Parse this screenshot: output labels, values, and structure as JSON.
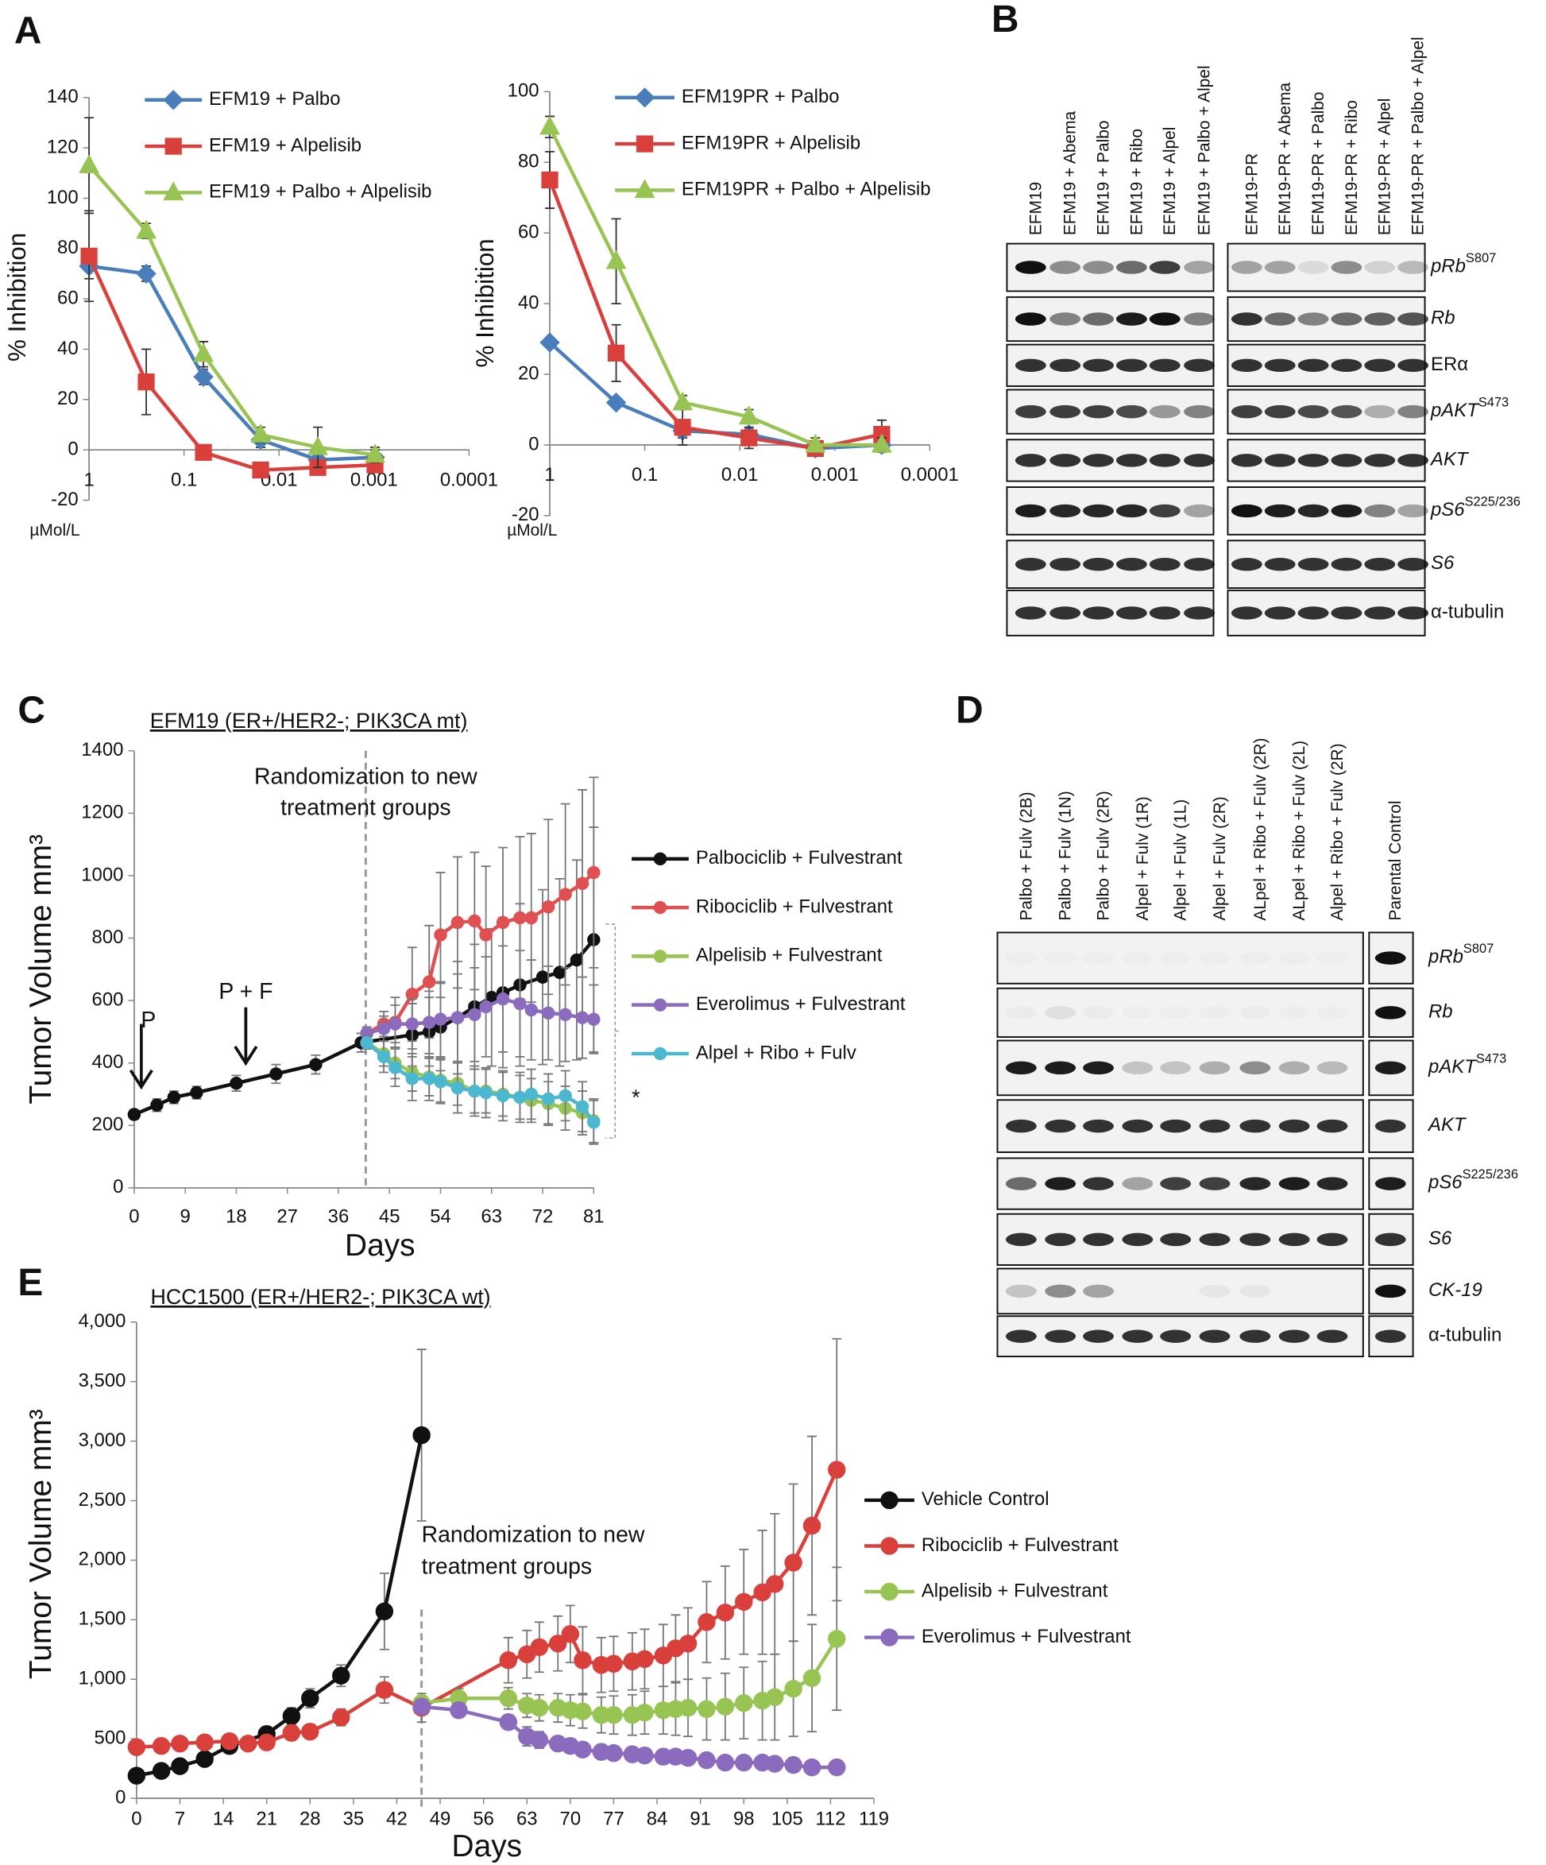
{
  "panel_labels": [
    "A",
    "B",
    "C",
    "D",
    "E"
  ],
  "chart_data": [
    {
      "type": "line",
      "xlog": true,
      "y_label": "% Inhibition",
      "x_unit": "µMol/L",
      "x": [
        1,
        0.25,
        0.0625,
        0.015625,
        0.00390625,
        0.0009765625
      ],
      "xlim": [
        1,
        0.0001
      ],
      "xticks": [
        1,
        0.1,
        0.01,
        0.001,
        0.0001
      ],
      "ylim": [
        -20,
        140
      ],
      "yticks": [
        -20,
        0,
        20,
        40,
        60,
        80,
        100,
        120,
        140
      ],
      "series": [
        {
          "name": "EFM19 + Palbo",
          "color": "#4a7ebb",
          "marker": "diamond",
          "values": [
            73,
            70,
            29,
            4,
            -4,
            -3
          ],
          "errors": [
            5,
            3,
            3,
            3,
            5,
            3
          ]
        },
        {
          "name": "EFM19 + Alpelisib",
          "color": "#d9403b",
          "marker": "square",
          "values": [
            77,
            27,
            -1,
            -8,
            -7,
            -6
          ],
          "errors": [
            18,
            13,
            2,
            2,
            3,
            3
          ]
        },
        {
          "name": "EFM19 + Palbo + Alpelisib",
          "color": "#98c454",
          "marker": "triangle",
          "values": [
            113,
            87,
            38,
            6,
            1,
            -2
          ],
          "errors": [
            19,
            3,
            5,
            3,
            8,
            3
          ]
        }
      ]
    },
    {
      "type": "line",
      "xlog": true,
      "y_label": "% Inhibition",
      "x_unit": "µMol/L",
      "x": [
        1,
        0.2,
        0.04,
        0.008,
        0.0016,
        0.00032
      ],
      "xlim": [
        1,
        0.0001
      ],
      "xticks": [
        1,
        0.1,
        0.01,
        0.001,
        0.0001
      ],
      "ylim": [
        -20,
        100
      ],
      "yticks": [
        -20,
        0,
        20,
        40,
        60,
        80,
        100
      ],
      "series": [
        {
          "name": "EFM19PR + Palbo",
          "color": "#4a7ebb",
          "marker": "diamond",
          "values": [
            29,
            12,
            4,
            3,
            -1,
            0
          ],
          "errors": [
            1,
            1,
            2,
            2,
            2,
            2
          ]
        },
        {
          "name": "EFM19PR + Alpelisib",
          "color": "#d9403b",
          "marker": "square",
          "values": [
            75,
            26,
            5,
            2,
            -1,
            3
          ],
          "errors": [
            8,
            8,
            5,
            3,
            2,
            4
          ]
        },
        {
          "name": "EFM19PR + Palbo + Alpelisib",
          "color": "#98c454",
          "marker": "triangle",
          "values": [
            90,
            52,
            12,
            8,
            0,
            0
          ],
          "errors": [
            3,
            12,
            2,
            2,
            2,
            2
          ]
        }
      ]
    },
    {
      "type": "line",
      "title": "EFM19 (ER+/HER2-; PIK3CA mt)",
      "x_label": "Days",
      "y_label": "Tumor Volume mm³",
      "annotations": [
        "Randomization to new",
        "treatment groups"
      ],
      "dose_labels": [
        "P",
        "P + F"
      ],
      "significance": "*",
      "x": [
        41,
        44,
        46,
        49,
        52,
        54,
        57,
        60,
        62,
        65,
        68,
        70,
        73,
        76,
        79,
        81
      ],
      "xlim": [
        0,
        81
      ],
      "xticks": [
        0,
        9,
        18,
        27,
        36,
        45,
        54,
        63,
        72,
        81
      ],
      "ylim": [
        0,
        1400
      ],
      "yticks": [
        0,
        200,
        400,
        600,
        800,
        1000,
        1200,
        1400
      ],
      "series": [
        {
          "name": "Palbociclib + Fulvestrant",
          "color": "#111111",
          "x": [
            0,
            4,
            7,
            11,
            18,
            25,
            32,
            40,
            49,
            52,
            54,
            57,
            60,
            63,
            65,
            68,
            72,
            75,
            78,
            81
          ],
          "values": [
            235,
            265,
            290,
            305,
            335,
            365,
            395,
            465,
            490,
            500,
            515,
            545,
            580,
            610,
            625,
            650,
            675,
            690,
            730,
            795
          ],
          "errors": [
            15,
            20,
            20,
            20,
            25,
            30,
            30,
            30,
            100,
            110,
            140,
            180,
            200,
            220,
            240,
            260,
            280,
            300,
            320,
            360
          ]
        },
        {
          "name": "Ribociclib + Fulvestrant",
          "color": "#e05050",
          "values": [
            495,
            525,
            530,
            620,
            660,
            810,
            850,
            855,
            810,
            850,
            865,
            865,
            900,
            940,
            975,
            1010
          ],
          "errors": [
            20,
            40,
            80,
            150,
            180,
            200,
            210,
            220,
            220,
            240,
            260,
            270,
            280,
            290,
            300,
            305
          ]
        },
        {
          "name": "Alpelisib + Fulvestrant",
          "color": "#98c454",
          "values": [
            465,
            430,
            400,
            370,
            355,
            345,
            335,
            310,
            310,
            300,
            290,
            280,
            270,
            255,
            240,
            215
          ],
          "errors": [
            20,
            40,
            50,
            60,
            60,
            70,
            70,
            70,
            70,
            70,
            70,
            70,
            70,
            70,
            70,
            70
          ]
        },
        {
          "name": "Everolimus + Fulvestrant",
          "color": "#8a6bbe",
          "values": [
            495,
            510,
            525,
            525,
            530,
            540,
            545,
            555,
            580,
            605,
            590,
            570,
            560,
            555,
            545,
            540
          ],
          "errors": [
            20,
            40,
            60,
            80,
            100,
            120,
            140,
            150,
            160,
            170,
            170,
            160,
            150,
            150,
            130,
            110
          ]
        },
        {
          "name": "Alpel + Ribo + Fulv",
          "color": "#4bb8cf",
          "values": [
            465,
            420,
            385,
            350,
            350,
            340,
            320,
            310,
            305,
            295,
            290,
            300,
            285,
            295,
            260,
            210
          ],
          "errors": [
            20,
            50,
            60,
            70,
            70,
            70,
            80,
            80,
            80,
            80,
            80,
            80,
            80,
            80,
            80,
            70
          ]
        }
      ]
    },
    {
      "type": "line",
      "title": "HCC1500 (ER+/HER2-; PIK3CA wt)",
      "x_label": "Days",
      "y_label": "Tumor Volume mm³",
      "annotations": [
        "Randomization to new",
        "treatment groups"
      ],
      "xlim": [
        0,
        119
      ],
      "xticks": [
        0,
        7,
        14,
        21,
        28,
        35,
        42,
        49,
        56,
        63,
        70,
        77,
        84,
        91,
        98,
        105,
        112,
        119
      ],
      "ylim": [
        0,
        4000
      ],
      "yticks": [
        0,
        500,
        {
          "value": 1000,
          "label": "1,000"
        },
        {
          "value": 1500,
          "label": "1,500"
        },
        {
          "value": 2000,
          "label": "2,000"
        },
        {
          "value": 2500,
          "label": "2,500"
        },
        {
          "value": 3000,
          "label": "3,000"
        },
        {
          "value": 3500,
          "label": "3,500"
        },
        {
          "value": 4000,
          "label": "4,000"
        }
      ],
      "series": [
        {
          "name": "Vehicle Control",
          "color": "#111111",
          "x": [
            0,
            4,
            7,
            11,
            15,
            21,
            25,
            28,
            33,
            40,
            46
          ],
          "values": [
            190,
            230,
            270,
            330,
            440,
            540,
            690,
            840,
            1030,
            1570,
            3050
          ],
          "errors": [
            30,
            30,
            30,
            40,
            50,
            60,
            70,
            80,
            90,
            320,
            720
          ]
        },
        {
          "name": "Ribociclib + Fulvestrant",
          "color": "#d9403b",
          "x": [
            0,
            4,
            7,
            11,
            15,
            18,
            21,
            25,
            28,
            33,
            40,
            46,
            60,
            63,
            65,
            68,
            70,
            72,
            75,
            77,
            80,
            82,
            85,
            87,
            89,
            92,
            95,
            98,
            101,
            103,
            106,
            109,
            113
          ],
          "values": [
            430,
            440,
            460,
            470,
            480,
            460,
            470,
            550,
            560,
            680,
            910,
            760,
            1160,
            1210,
            1270,
            1300,
            1380,
            1160,
            1120,
            1130,
            1150,
            1170,
            1200,
            1260,
            1300,
            1480,
            1560,
            1650,
            1730,
            1800,
            1980,
            2290,
            2760
          ],
          "errors": [
            40,
            40,
            40,
            40,
            40,
            40,
            40,
            60,
            60,
            70,
            110,
            120,
            190,
            200,
            210,
            230,
            240,
            280,
            230,
            230,
            240,
            250,
            260,
            280,
            300,
            340,
            390,
            440,
            520,
            590,
            660,
            750,
            1100
          ]
        },
        {
          "name": "Alpelisib + Fulvestrant",
          "color": "#98c454",
          "x": [
            46,
            52,
            60,
            63,
            65,
            68,
            70,
            72,
            75,
            77,
            80,
            82,
            85,
            87,
            89,
            92,
            95,
            98,
            101,
            103,
            106,
            109,
            113
          ],
          "values": [
            800,
            840,
            840,
            780,
            760,
            760,
            740,
            730,
            700,
            700,
            700,
            720,
            740,
            750,
            760,
            750,
            770,
            800,
            820,
            850,
            920,
            1010,
            1340
          ],
          "errors": [
            60,
            80,
            90,
            100,
            110,
            120,
            130,
            140,
            150,
            160,
            170,
            180,
            200,
            220,
            240,
            260,
            280,
            300,
            330,
            360,
            400,
            450,
            600
          ]
        },
        {
          "name": "Everolimus + Fulvestrant",
          "color": "#8a6bbe",
          "x": [
            46,
            52,
            60,
            63,
            65,
            68,
            70,
            72,
            75,
            77,
            80,
            82,
            85,
            87,
            89,
            92,
            95,
            98,
            101,
            103,
            106,
            109,
            113
          ],
          "values": [
            770,
            740,
            640,
            520,
            490,
            460,
            440,
            410,
            390,
            380,
            370,
            360,
            350,
            350,
            340,
            320,
            300,
            300,
            300,
            290,
            280,
            260,
            260
          ],
          "errors": [
            60,
            60,
            60,
            80,
            70,
            60,
            60,
            50,
            50,
            50,
            50,
            50,
            50,
            50,
            50,
            50,
            50,
            50,
            50,
            50,
            50,
            50,
            60
          ]
        }
      ]
    }
  ],
  "blots": [
    {
      "lanes": [
        "EFM19",
        "EFM19 + Abema",
        "EFM19 + Palbo",
        "EFM19 + Ribo",
        "EFM19 + Alpel",
        "EFM19 + Palbo + Alpel",
        "EFM19-PR",
        "EFM19-PR + Abema",
        "EFM19-PR + Palbo",
        "EFM19-PR + Ribo",
        "EFM19-PR + Alpel",
        "EFM19-PR + Palbo + Alpel"
      ],
      "rows": [
        {
          "label": "pRb",
          "sup": "S807",
          "italic": true
        },
        {
          "label": "Rb",
          "italic": true
        },
        {
          "label": "ERα",
          "italic": false
        },
        {
          "label": "pAKT",
          "sup": "S473",
          "italic": true
        },
        {
          "label": "AKT",
          "italic": true
        },
        {
          "label": "pS6",
          "sup": "S225/236",
          "italic": true
        },
        {
          "label": "S6",
          "italic": true
        },
        {
          "label": "α-tubulin",
          "italic": false
        }
      ]
    },
    {
      "lanes": [
        "Palbo + Fulv (2B)",
        "Palbo + Fulv (1N)",
        "Palbo + Fulv (2R)",
        "Alpel + Fulv (1R)",
        "Alpel + Fulv (1L)",
        "Alpel + Fulv (2R)",
        "ALpel + Ribo + Fulv (2R)",
        "ALpel + Ribo + Fulv (2L)",
        "Alpel + Ribo + Fulv (2R)",
        "Parental Control"
      ],
      "rows": [
        {
          "label": "pRb",
          "sup": "S807",
          "italic": true
        },
        {
          "label": "Rb",
          "italic": true
        },
        {
          "label": "pAKT",
          "sup": "S473",
          "italic": true
        },
        {
          "label": "AKT",
          "italic": true
        },
        {
          "label": "pS6",
          "sup": "S225/236",
          "italic": true
        },
        {
          "label": "S6",
          "italic": true
        },
        {
          "label": "CK-19",
          "italic": true
        },
        {
          "label": "α-tubulin",
          "italic": false
        }
      ]
    }
  ]
}
